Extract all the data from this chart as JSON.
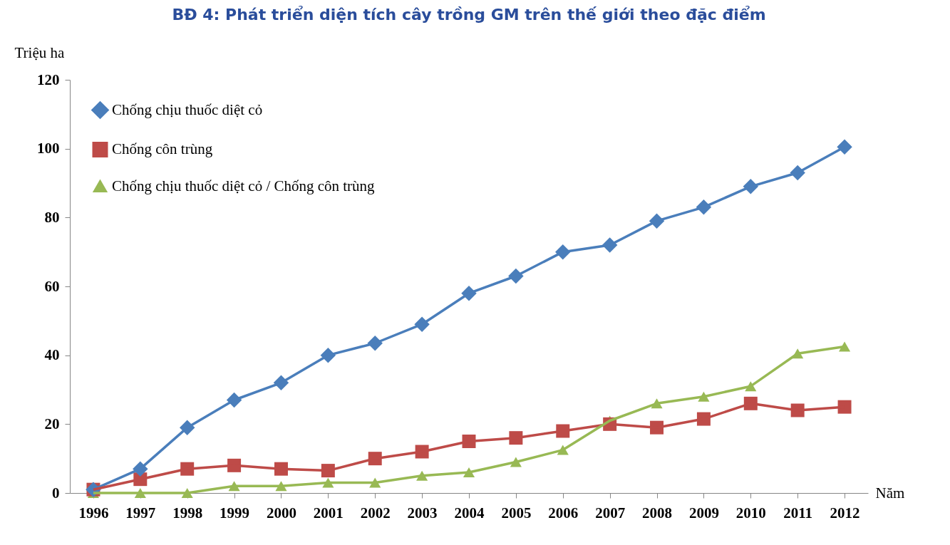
{
  "chart_data": {
    "type": "line",
    "title": "BĐ 4: Phát triển diện tích cây trồng GM trên thế giới theo đặc điểm",
    "ylabel": "Triệu ha",
    "xlabel": "Năm",
    "categories": [
      "1996",
      "1997",
      "1998",
      "1999",
      "2000",
      "2001",
      "2002",
      "2003",
      "2004",
      "2005",
      "2006",
      "2007",
      "2008",
      "2009",
      "2010",
      "2011",
      "2012"
    ],
    "series": [
      {
        "name": "Chống chịu thuốc diệt cỏ",
        "color": "#4a7ebb",
        "marker": "diamond",
        "values": [
          1,
          7,
          19,
          27,
          32,
          40,
          43.5,
          49,
          58,
          63,
          70,
          72,
          79,
          83,
          89,
          93,
          100.5
        ]
      },
      {
        "name": "Chống côn trùng",
        "color": "#be4b48",
        "marker": "square",
        "values": [
          1,
          4,
          7,
          8,
          7,
          6.5,
          10,
          12,
          15,
          16,
          18,
          20,
          19,
          21.5,
          26,
          24,
          25
        ]
      },
      {
        "name": "Chống chịu thuốc diệt cỏ / Chống côn trùng",
        "color": "#98b954",
        "marker": "triangle",
        "values": [
          0,
          0,
          0,
          2,
          2,
          3,
          3,
          5,
          6,
          9,
          12.5,
          21,
          26,
          28,
          31,
          40.5,
          42.5
        ]
      }
    ],
    "ylim": [
      0,
      120
    ],
    "yticks": [
      0,
      20,
      40,
      60,
      80,
      100,
      120
    ],
    "grid": false,
    "legend": "top left",
    "line_style": "solid"
  }
}
